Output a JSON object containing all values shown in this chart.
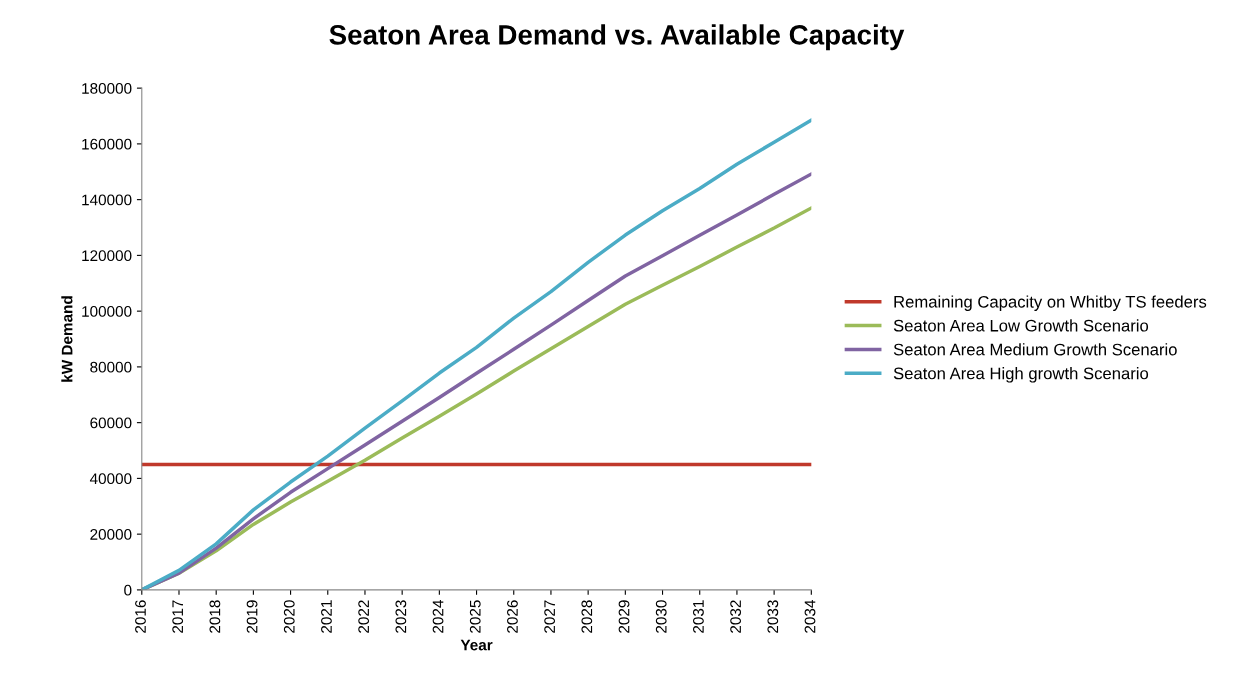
{
  "chart_data": {
    "type": "line",
    "title": "Seaton Area Demand vs. Available Capacity",
    "xlabel": "Year",
    "ylabel": "kW Demand",
    "x": [
      "2016",
      "2017",
      "2018",
      "2019",
      "2020",
      "2021",
      "2022",
      "2023",
      "2024",
      "2025",
      "2026",
      "2027",
      "2028",
      "2029",
      "2030",
      "2031",
      "2032",
      "2033",
      "2034"
    ],
    "series": [
      {
        "name": "Remaining Capacity on Whitby TS feeders",
        "color": "#c0392b",
        "values": [
          45000,
          45000,
          45000,
          45000,
          45000,
          45000,
          45000,
          45000,
          45000,
          45000,
          45000,
          45000,
          45000,
          45000,
          45000,
          45000,
          45000,
          45000,
          45000
        ]
      },
      {
        "name": "Seaton Area Low Growth Scenario",
        "color": "#9bbb59",
        "values": [
          0,
          6000,
          14000,
          23500,
          31500,
          39000,
          46500,
          54500,
          62300,
          70300,
          78500,
          86500,
          94500,
          102500,
          109300,
          116000,
          123000,
          129800,
          137000
        ]
      },
      {
        "name": "Seaton Area Medium Growth Scenario",
        "color": "#8064a2",
        "values": [
          0,
          6000,
          15000,
          25500,
          35000,
          43500,
          52000,
          60500,
          69000,
          77700,
          86300,
          95000,
          103800,
          112600,
          119900,
          127200,
          134500,
          141900,
          149200
        ]
      },
      {
        "name": "Seaton Area High growth Scenario",
        "color": "#4bacc6",
        "values": [
          0,
          7000,
          16500,
          28700,
          38700,
          48000,
          58000,
          67800,
          77800,
          87000,
          97500,
          107000,
          117500,
          127300,
          136000,
          144000,
          152700,
          160600,
          168500
        ]
      }
    ],
    "xlim": [
      "2016",
      "2034"
    ],
    "xticks": [
      "2016",
      "2017",
      "2018",
      "2019",
      "2020",
      "2021",
      "2022",
      "2023",
      "2024",
      "2025",
      "2026",
      "2027",
      "2028",
      "2029",
      "2030",
      "2031",
      "2032",
      "2033",
      "2034"
    ],
    "ylim": [
      0,
      180000
    ],
    "yticks": [
      0,
      20000,
      40000,
      60000,
      80000,
      100000,
      120000,
      140000,
      160000,
      180000
    ],
    "grid": false,
    "legend": "right",
    "marker": "none",
    "line_style": "solid"
  }
}
